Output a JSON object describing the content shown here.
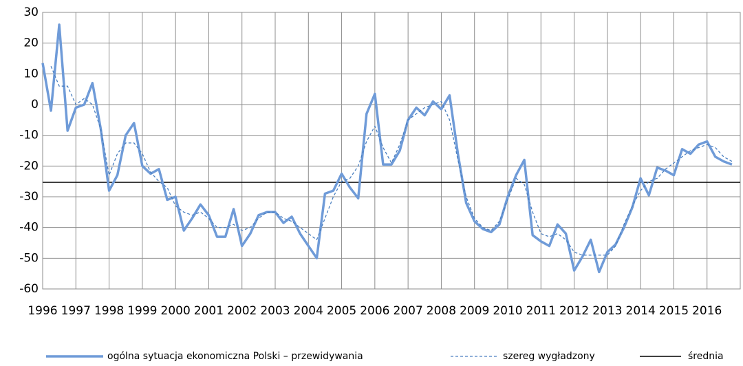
{
  "chart_data": {
    "type": "line",
    "categories": [
      "1996",
      null,
      null,
      null,
      "1997",
      null,
      null,
      null,
      "1998",
      null,
      null,
      null,
      "1999",
      null,
      null,
      null,
      "2000",
      null,
      null,
      null,
      "2001",
      null,
      null,
      null,
      "2002",
      null,
      null,
      null,
      "2003",
      null,
      null,
      null,
      "2004",
      null,
      null,
      null,
      "2005",
      null,
      null,
      null,
      "2006",
      null,
      null,
      null,
      "2007",
      null,
      null,
      null,
      "2008",
      null,
      null,
      null,
      "2009",
      null,
      null,
      null,
      "2010",
      null,
      null,
      null,
      "2011",
      null,
      null,
      null,
      "2012",
      null,
      null,
      null,
      "2013",
      null,
      null,
      null,
      "2014",
      null,
      null,
      null,
      "2015",
      null,
      null,
      null,
      "2016",
      null,
      null,
      null
    ],
    "series": [
      {
        "name": "ogólna sytuacja ekonomiczna Polski – przewidywania",
        "color": "#6f9bd8",
        "style": "solid",
        "values": [
          13.5,
          -2,
          26,
          -8.5,
          -1,
          0,
          7,
          -8,
          -28,
          -23,
          -10,
          -6,
          -20,
          -22.5,
          -21,
          -31,
          -30,
          -41,
          -37,
          -32.5,
          -36,
          -43,
          -43,
          -34,
          -46,
          -42,
          -36,
          -35,
          -35,
          -38.5,
          -36.5,
          -42,
          -46,
          -50,
          -29,
          -28,
          -22.5,
          -27,
          -30.5,
          -3,
          3.5,
          -19.5,
          -19.5,
          -15,
          -5,
          -1,
          -3.5,
          1,
          -1.5,
          3,
          -16,
          -32,
          -38,
          -40.5,
          -41.5,
          -39,
          -30,
          -23,
          -18,
          -42.5,
          -44.5,
          -46,
          -39,
          -42,
          -54,
          -49.5,
          -44,
          -54.5,
          -48,
          -45.5,
          -40,
          -33.5,
          -24,
          -29.5,
          -20.5,
          -21.5,
          -23,
          -14.5,
          -16,
          -13,
          -12,
          -17,
          -18.5,
          -19.5
        ]
      },
      {
        "name": "szereg wygładzony",
        "color": "#4a7fc0",
        "style": "dashed",
        "values": [
          null,
          12.5,
          6,
          6,
          0,
          2,
          0,
          -8,
          -23,
          -16,
          -12.5,
          -12.5,
          -16,
          -22,
          -25,
          -27,
          -33,
          -35,
          -36,
          -35,
          -37,
          -40,
          -40,
          -39,
          -41,
          -40,
          -37,
          -35,
          -35,
          -37,
          -38,
          -40,
          -42,
          -44,
          -37,
          -30,
          -25,
          -24,
          -20,
          -12,
          -7,
          -14,
          -19,
          -13,
          -5,
          -3,
          -1,
          0,
          1,
          -5,
          -18,
          -30,
          -37,
          -40,
          -41,
          -38,
          -31,
          -24,
          -26,
          -35,
          -42,
          -43,
          -42,
          -44,
          -48,
          -49,
          -49,
          -49,
          -49,
          -46,
          -39,
          -33,
          -28,
          -25,
          -24,
          -21,
          -19,
          -17,
          -15,
          -14,
          -13,
          -14,
          -17,
          -18.5
        ]
      }
    ],
    "mean": {
      "name": "średnia",
      "value": -25.3,
      "color": "#000000"
    },
    "ylim": [
      -60,
      30
    ],
    "yticks": [
      -60,
      -50,
      -40,
      -30,
      -20,
      -10,
      0,
      10,
      20,
      30
    ],
    "grid": true,
    "legend": "bottom"
  }
}
